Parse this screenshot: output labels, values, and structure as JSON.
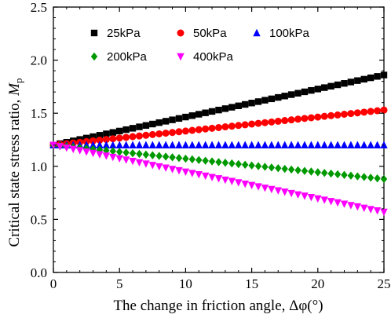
{
  "chart_data": {
    "type": "scatter",
    "xlabel": "The change in friction angle, Δφ(°)",
    "ylabel_main": "Critical state stress ratio, ",
    "ylabel_var": "M",
    "ylabel_sub": "p",
    "xlim": [
      0,
      25
    ],
    "ylim": [
      0,
      2.5
    ],
    "xticks": [
      0,
      5,
      10,
      15,
      20,
      25
    ],
    "yticks": [
      0.0,
      0.5,
      1.0,
      1.5,
      2.0,
      2.5
    ],
    "xtick_labels": [
      "0",
      "5",
      "10",
      "15",
      "20",
      "25"
    ],
    "ytick_labels": [
      "0.0",
      "0.5",
      "1.0",
      "1.5",
      "2.0",
      "2.5"
    ],
    "grid": false,
    "legend_position": "top",
    "x_step": 0.5,
    "series": [
      {
        "name": "25kPa",
        "marker": "square",
        "color": "#000000",
        "y_start": 1.2,
        "y_end": 1.86
      },
      {
        "name": "50kPa",
        "marker": "circle",
        "color": "#ff0000",
        "y_start": 1.2,
        "y_end": 1.53
      },
      {
        "name": "100kPa",
        "marker": "triangle-up",
        "color": "#0000ff",
        "y_start": 1.2,
        "y_end": 1.2
      },
      {
        "name": "200kPa",
        "marker": "diamond",
        "color": "#009900",
        "y_start": 1.2,
        "y_end": 0.88
      },
      {
        "name": "400kPa",
        "marker": "triangle-down",
        "color": "#ff00ff",
        "y_start": 1.2,
        "y_end": 0.57
      }
    ]
  }
}
